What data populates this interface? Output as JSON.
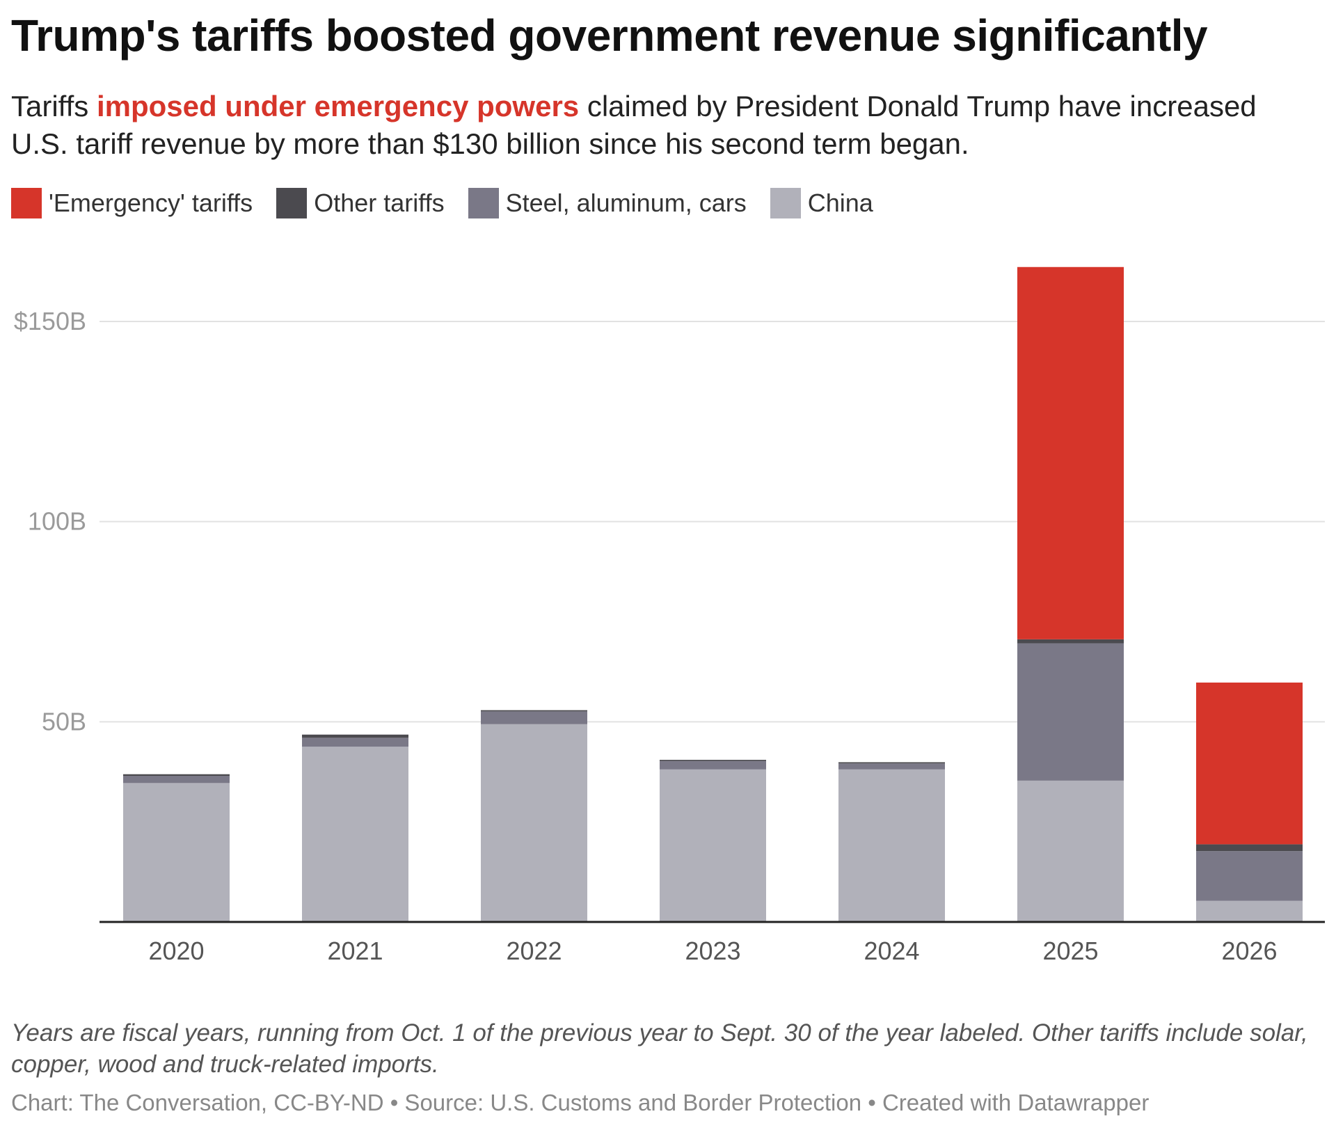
{
  "title": "Trump's tariffs boosted government revenue significantly",
  "subtitle": {
    "before": "Tariffs ",
    "highlight": "imposed under emergency powers",
    "after": " claimed by President Donald Trump have increased U.S. tariff revenue by more than $130 billion since his second term began."
  },
  "chart_data": {
    "type": "bar",
    "stacked": true,
    "categories": [
      "2020",
      "2021",
      "2022",
      "2023",
      "2024",
      "2025",
      "2026"
    ],
    "series": [
      {
        "name": "China",
        "color": "#b1b1ba",
        "values": [
          34.7,
          43.8,
          49.4,
          38.1,
          38.1,
          35.3,
          5.3
        ]
      },
      {
        "name": "Steel, aluminum, cars",
        "color": "#7a7887",
        "values": [
          1.8,
          2.2,
          3.2,
          2.1,
          1.5,
          34.3,
          12.4
        ]
      },
      {
        "name": "Other tariffs",
        "color": "#4b4a4f",
        "values": [
          0.4,
          0.8,
          0.3,
          0.3,
          0.3,
          1.0,
          1.7
        ]
      },
      {
        "name": "'Emergency' tariffs",
        "color": "#d6352a",
        "values": [
          0,
          0,
          0,
          0,
          0,
          93.0,
          40.4
        ]
      }
    ],
    "legend_order": [
      "'Emergency' tariffs",
      "Other tariffs",
      "Steel, aluminum, cars",
      "China"
    ],
    "yticks": [
      {
        "value": 50,
        "label": "50B"
      },
      {
        "value": 100,
        "label": "100B"
      },
      {
        "value": 150,
        "label": "$150B"
      }
    ],
    "ylim": [
      0,
      170
    ],
    "grid": true,
    "legend_position": "top-left",
    "xlabel": "",
    "ylabel": ""
  },
  "note": "Years are fiscal years, running from Oct. 1 of the previous year to Sept. 30 of the year labeled. Other tariffs include solar, copper, wood and truck-related imports.",
  "credit": "Chart: The Conversation, CC-BY-ND • Source: U.S. Customs and Border Protection • Created with Datawrapper"
}
